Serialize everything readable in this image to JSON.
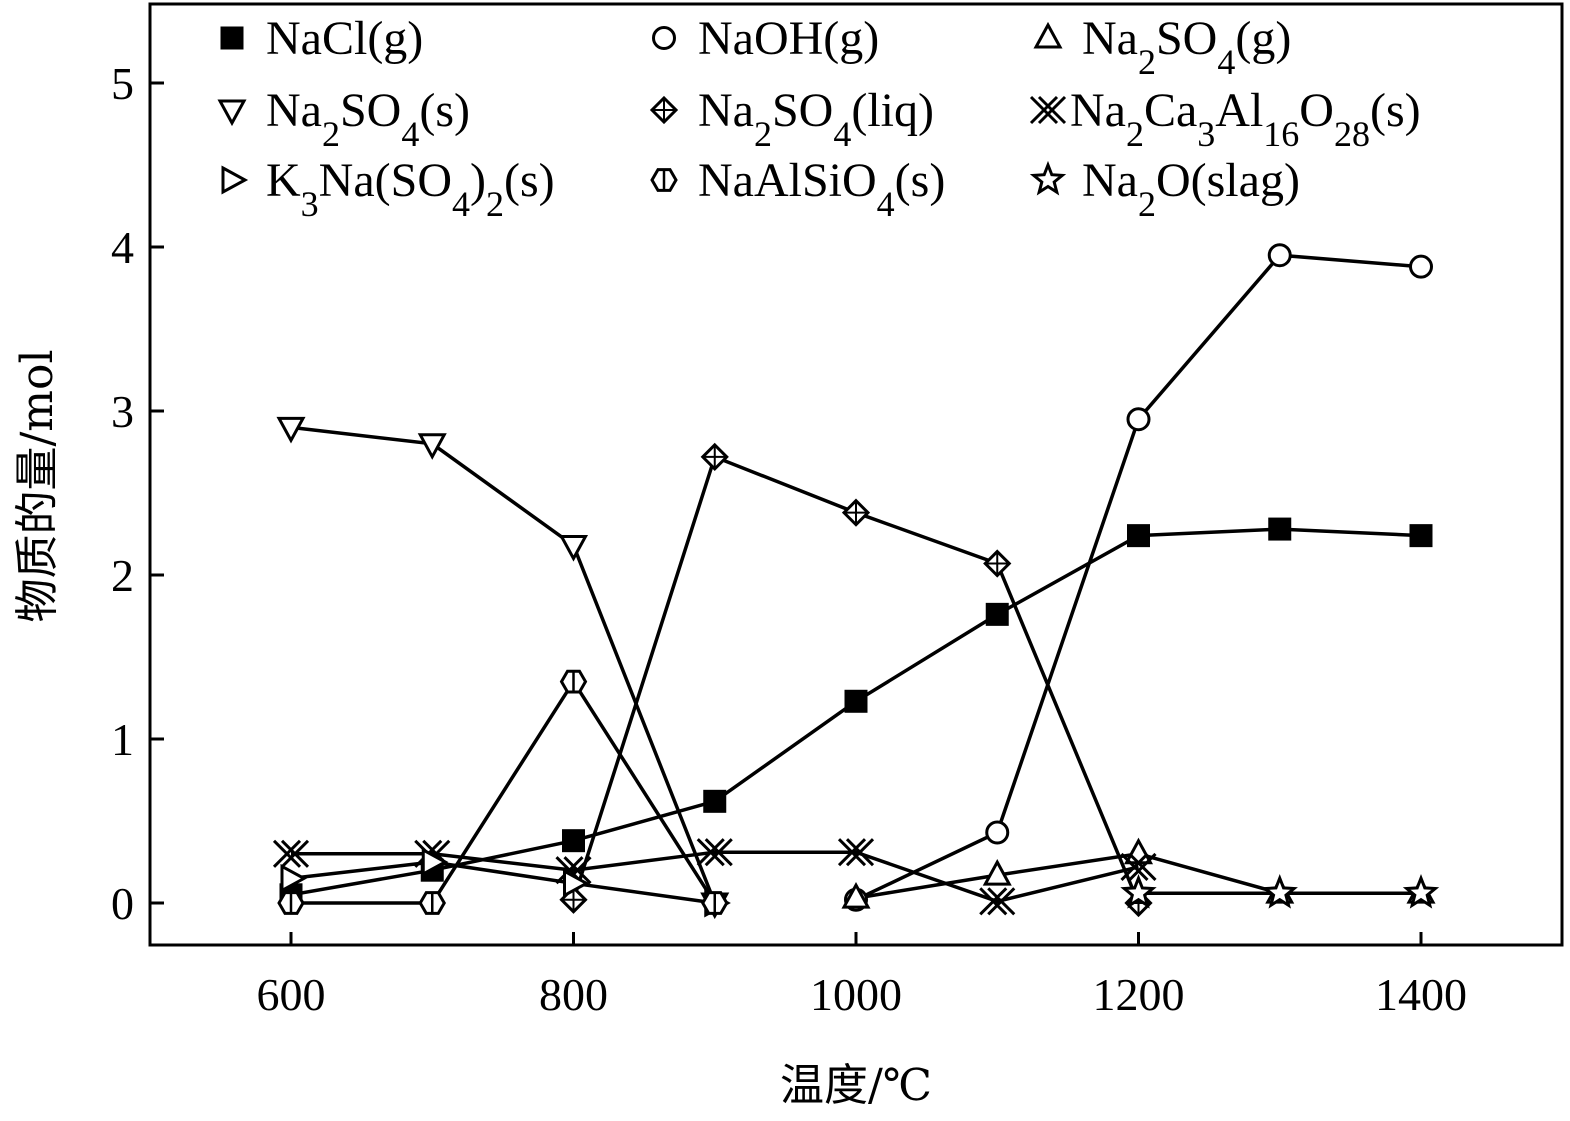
{
  "chart_data": {
    "type": "line",
    "xlabel": "温度/℃",
    "ylabel": "物质的量/mol",
    "xlim": [
      500,
      1550
    ],
    "ylim": [
      -0.25,
      5.5
    ],
    "xticks": [
      "600",
      "800",
      "1000",
      "1200",
      "1400"
    ],
    "yticks": [
      "0",
      "1",
      "2",
      "3",
      "4",
      "5"
    ],
    "legend_position": "top",
    "series": [
      {
        "name": "NaCl(g)",
        "marker": "square-filled",
        "points": [
          [
            600,
            0.05
          ],
          [
            700,
            0.2
          ],
          [
            800,
            0.38
          ],
          [
            900,
            0.62
          ],
          [
            1000,
            1.23
          ],
          [
            1100,
            1.76
          ],
          [
            1200,
            2.24
          ],
          [
            1300,
            2.28
          ],
          [
            1400,
            2.24
          ]
        ]
      },
      {
        "name": "NaOH(g)",
        "marker": "circle-open",
        "points": [
          [
            1000,
            0.02
          ],
          [
            1100,
            0.43
          ],
          [
            1200,
            2.95
          ],
          [
            1300,
            3.95
          ],
          [
            1400,
            3.88
          ]
        ]
      },
      {
        "name": "Na2SO4(g)",
        "marker": "triangle-up-open",
        "points": [
          [
            1000,
            0.03
          ],
          [
            1100,
            0.17
          ],
          [
            1200,
            0.3
          ],
          [
            1300,
            0.06
          ],
          [
            1400,
            0.06
          ]
        ]
      },
      {
        "name": "Na2SO4(s)",
        "marker": "triangle-down-open",
        "points": [
          [
            600,
            2.9
          ],
          [
            700,
            2.8
          ],
          [
            800,
            2.18
          ],
          [
            900,
            0.0
          ]
        ]
      },
      {
        "name": "Na2SO4(liq)",
        "marker": "diamond-cross",
        "points": [
          [
            800,
            0.02
          ],
          [
            900,
            2.72
          ],
          [
            1000,
            2.38
          ],
          [
            1100,
            2.07
          ],
          [
            1200,
            0.0
          ]
        ]
      },
      {
        "name": "Na2Ca3Al16O28(s)",
        "marker": "x-double",
        "points": [
          [
            600,
            0.3
          ],
          [
            700,
            0.3
          ],
          [
            800,
            0.2
          ],
          [
            900,
            0.31
          ],
          [
            1000,
            0.31
          ],
          [
            1100,
            0.01
          ],
          [
            1200,
            0.22
          ]
        ]
      },
      {
        "name": "K3Na(SO4)2(s)",
        "marker": "triangle-right-open",
        "points": [
          [
            600,
            0.15
          ],
          [
            700,
            0.25
          ],
          [
            800,
            0.12
          ],
          [
            900,
            0.0
          ]
        ]
      },
      {
        "name": "NaAlSiO4(s)",
        "marker": "hexagon-open",
        "points": [
          [
            600,
            0.0
          ],
          [
            700,
            0.0
          ],
          [
            800,
            1.35
          ],
          [
            900,
            0.0
          ]
        ]
      },
      {
        "name": "Na2O(slag)",
        "marker": "star-open",
        "points": [
          [
            1200,
            0.06
          ],
          [
            1300,
            0.06
          ],
          [
            1400,
            0.06
          ]
        ]
      }
    ],
    "legend": [
      {
        "label": "NaCl(g)",
        "marker": "square-filled"
      },
      {
        "label": "NaOH(g)",
        "marker": "circle-open"
      },
      {
        "label": "Na2SO4(g)",
        "marker": "triangle-up-open"
      },
      {
        "label": "Na2SO4(s)",
        "marker": "triangle-down-open"
      },
      {
        "label": "Na2SO4(liq)",
        "marker": "diamond-cross"
      },
      {
        "label": "Na2Ca3Al16O28(s)",
        "marker": "x-double"
      },
      {
        "label": "K3Na(SO4)2(s)",
        "marker": "triangle-right-open"
      },
      {
        "label": "NaAlSiO4(s)",
        "marker": "hexagon-open"
      },
      {
        "label": "Na2O(slag)",
        "marker": "star-open"
      }
    ]
  }
}
